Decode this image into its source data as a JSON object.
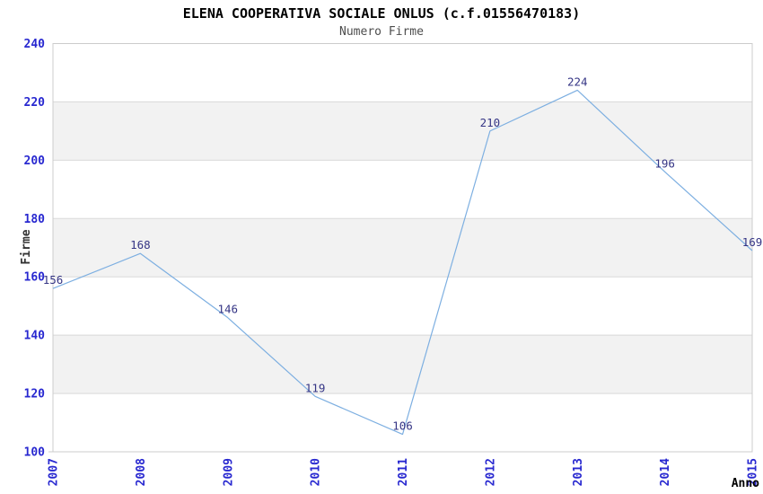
{
  "chart_data": {
    "type": "line",
    "title": "ELENA COOPERATIVA SOCIALE ONLUS (c.f.01556470183)",
    "subtitle": "Numero Firme",
    "xlabel": "Anno",
    "ylabel": "Firme",
    "categories": [
      "2007",
      "2008",
      "2009",
      "2010",
      "2011",
      "2012",
      "2013",
      "2014",
      "2015"
    ],
    "series": [
      {
        "name": "Numero Firme",
        "values": [
          156,
          168,
          146,
          119,
          106,
          210,
          224,
          196,
          169
        ]
      }
    ],
    "ylim": [
      100,
      240
    ],
    "ytick_step": 20,
    "ytick_labels": [
      "100",
      "120",
      "140",
      "160",
      "180",
      "200",
      "220",
      "240"
    ],
    "grid": "horizontal-with-alternating-bands",
    "legend_position": "none",
    "x_tick_rotation_deg": -90,
    "colors": {
      "line": "#7dafe1",
      "tick_label": "#2828d0",
      "data_label": "#353585",
      "band_light": "#ffffff",
      "band_shaded": "#f2f2f2",
      "grid_line": "#d9d9d9",
      "plot_border": "#cccccc",
      "title_text": "#000000",
      "subtitle_text": "#4d4d4d",
      "axis_title_text": "#333333"
    }
  }
}
